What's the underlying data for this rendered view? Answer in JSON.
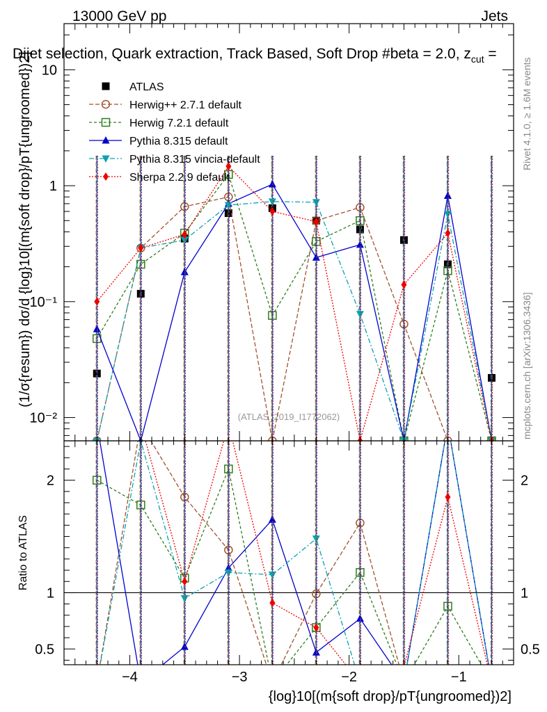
{
  "header": {
    "energy": "13000 GeV pp",
    "category": "Jets",
    "title": "Dijet selection, Quark extraction, Track Based, Soft Drop #beta = 2.0, z",
    "title_sub": "cut",
    "title_end": " = ",
    "watermark": "(ATLAS_2019_I1772062)",
    "side_rivet": "Rivet 4.1.0, ≥ 1.6M events",
    "side_mcplots": "mcplots.cern.ch [arXiv:1306.3436]"
  },
  "chart_data": {
    "type": "line",
    "x_centers": [
      -4.3,
      -3.9,
      -3.5,
      -3.1,
      -2.7,
      -2.3,
      -1.9,
      -1.5,
      -1.1,
      -0.7
    ],
    "xlim": [
      -4.6,
      -0.5
    ],
    "x_ticks": [
      -4,
      -3,
      -2,
      -1
    ],
    "x_tick_labels": [
      "−4",
      "−3",
      "−2",
      "−1"
    ],
    "xlabel": "{log}10[(m{soft drop}/pT{ungroomed})2]",
    "top": {
      "scale": "log",
      "ylim": [
        0.0063,
        25
      ],
      "y_ticks": [
        0.01,
        0.1,
        1,
        10
      ],
      "y_tick_labels": [
        "10⁻²",
        "10⁻¹",
        "1",
        "10"
      ],
      "ylabel": "(1/σ{resum}) dσ/d {log}10[(m{soft drop}/pT{ungroomed})2]"
    },
    "ratio": {
      "ylim": [
        0.36,
        2.35
      ],
      "y_ticks": [
        0.5,
        1,
        2
      ],
      "y_tick_labels": [
        "0.5",
        "1",
        "2"
      ],
      "ylabel": "Ratio to ATLAS"
    },
    "series": [
      {
        "name": "ATLAS",
        "color": "#000000",
        "marker": "square",
        "dash": "",
        "values": [
          0.024,
          0.117,
          0.35,
          0.58,
          0.64,
          0.5,
          0.42,
          0.34,
          0.21,
          0.022
        ],
        "ratio": [
          1,
          1,
          1,
          1,
          1,
          1,
          1,
          1,
          1,
          1
        ]
      },
      {
        "name": "Herwig++ 2.7.1 default",
        "color": "#a0522d",
        "marker": "open-circle",
        "dash": "6,3",
        "values": [
          0.0063,
          0.29,
          0.66,
          0.8,
          0.0063,
          0.5,
          0.65,
          0.064,
          0.0063,
          0.0063
        ],
        "ratio": [
          0.2,
          2.5,
          1.85,
          1.38,
          0.2,
          0.99,
          1.62,
          0.2,
          0.2,
          0.2
        ]
      },
      {
        "name": "Herwig 7.2.1 default",
        "color": "#2e7d1b",
        "marker": "open-square",
        "dash": "4,3",
        "values": [
          0.048,
          0.21,
          0.39,
          1.25,
          0.076,
          0.33,
          0.5,
          0.0063,
          0.185,
          0.0063
        ],
        "ratio": [
          2.0,
          1.78,
          1.13,
          2.1,
          0.2,
          0.69,
          1.18,
          0.2,
          0.88,
          0.2
        ]
      },
      {
        "name": "Pythia 8.315 default",
        "color": "#0000cc",
        "marker": "filled-triangle",
        "dash": "",
        "values": [
          0.058,
          0.0063,
          0.18,
          0.7,
          1.03,
          0.24,
          0.31,
          0.0063,
          0.82,
          0.0063
        ],
        "ratio": [
          2.5,
          0.2,
          0.52,
          1.22,
          1.65,
          0.47,
          0.77,
          0.2,
          2.5,
          0.2
        ]
      },
      {
        "name": "Pythia 8.315 vincia-default",
        "color": "#0aa1b0",
        "marker": "filled-triangle-down",
        "dash": "7,3,2,3",
        "values": [
          0.0063,
          0.29,
          0.34,
          0.68,
          0.73,
          0.72,
          0.078,
          0.0063,
          0.57,
          0.0063
        ],
        "ratio": [
          0.2,
          2.35,
          0.95,
          1.18,
          1.16,
          1.48,
          0.2,
          0.2,
          2.5,
          0.2
        ]
      },
      {
        "name": "Sherpa 2.2.9 default",
        "color": "#ee0000",
        "marker": "filled-diamond",
        "dash": "2,2",
        "values": [
          0.1,
          0.29,
          0.38,
          1.47,
          0.6,
          0.49,
          0.0063,
          0.14,
          0.39,
          0.0063
        ],
        "ratio": [
          4.2,
          2.5,
          1.1,
          2.5,
          0.91,
          0.69,
          0.2,
          0.34,
          1.85,
          0.2
        ]
      }
    ]
  }
}
